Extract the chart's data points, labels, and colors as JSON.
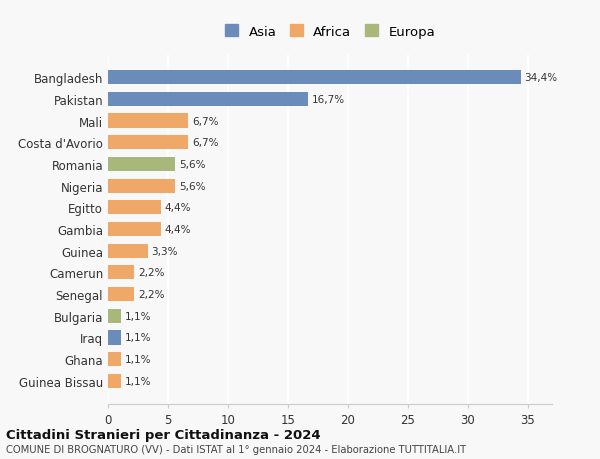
{
  "categories": [
    "Guinea Bissau",
    "Ghana",
    "Iraq",
    "Bulgaria",
    "Senegal",
    "Camerun",
    "Guinea",
    "Gambia",
    "Egitto",
    "Nigeria",
    "Romania",
    "Costa d'Avorio",
    "Mali",
    "Pakistan",
    "Bangladesh"
  ],
  "values": [
    1.1,
    1.1,
    1.1,
    1.1,
    2.2,
    2.2,
    3.3,
    4.4,
    4.4,
    5.6,
    5.6,
    6.7,
    6.7,
    16.7,
    34.4
  ],
  "labels": [
    "1,1%",
    "1,1%",
    "1,1%",
    "1,1%",
    "2,2%",
    "2,2%",
    "3,3%",
    "4,4%",
    "4,4%",
    "5,6%",
    "5,6%",
    "6,7%",
    "6,7%",
    "16,7%",
    "34,4%"
  ],
  "continents": [
    "Africa",
    "Africa",
    "Asia",
    "Europa",
    "Africa",
    "Africa",
    "Africa",
    "Africa",
    "Africa",
    "Africa",
    "Europa",
    "Africa",
    "Africa",
    "Asia",
    "Asia"
  ],
  "colors": {
    "Asia": "#6b8cba",
    "Africa": "#f0a868",
    "Europa": "#a8b87a"
  },
  "legend_labels": [
    "Asia",
    "Africa",
    "Europa"
  ],
  "title1": "Cittadini Stranieri per Cittadinanza - 2024",
  "title2": "COMUNE DI BROGNATURO (VV) - Dati ISTAT al 1° gennaio 2024 - Elaborazione TUTTITALIA.IT",
  "xlim": [
    0,
    37
  ],
  "xticks": [
    0,
    5,
    10,
    15,
    20,
    25,
    30,
    35
  ],
  "background_color": "#f8f8f8",
  "bar_height": 0.65,
  "figsize": [
    6.0,
    4.6
  ],
  "dpi": 100
}
